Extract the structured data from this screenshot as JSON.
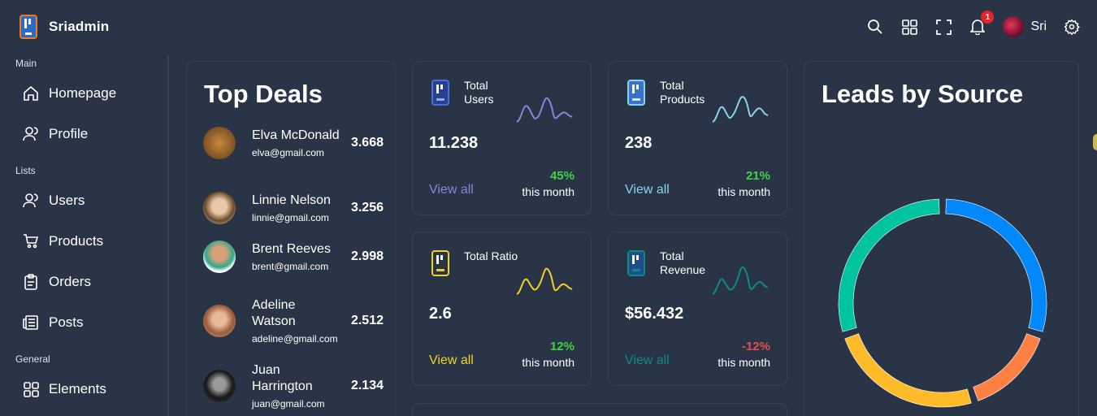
{
  "app": {
    "title": "Sriadmin"
  },
  "header": {
    "notification_count": "1",
    "user_name": "Sri"
  },
  "sidebar": {
    "sections": [
      {
        "title": "Main",
        "items": [
          {
            "label": "Homepage",
            "icon": "home-icon"
          },
          {
            "label": "Profile",
            "icon": "user-icon"
          }
        ]
      },
      {
        "title": "Lists",
        "items": [
          {
            "label": "Users",
            "icon": "users-icon"
          },
          {
            "label": "Products",
            "icon": "cart-icon"
          },
          {
            "label": "Orders",
            "icon": "clipboard-icon"
          },
          {
            "label": "Posts",
            "icon": "newspaper-icon"
          }
        ]
      },
      {
        "title": "General",
        "items": [
          {
            "label": "Elements",
            "icon": "grid-icon"
          }
        ]
      }
    ]
  },
  "top_deals": {
    "title": "Top Deals",
    "deals": [
      {
        "name": "Elva McDonald",
        "email": "elva@gmail.com",
        "amount": "3.668"
      },
      {
        "name": "Linnie Nelson",
        "email": "linnie@gmail.com",
        "amount": "3.256"
      },
      {
        "name": "Brent Reeves",
        "email": "brent@gmail.com",
        "amount": "2.998"
      },
      {
        "name": "Adeline Watson",
        "email": "adeline@gmail.com",
        "amount": "2.512"
      },
      {
        "name": "Juan Harrington",
        "email": "juan@gmail.com",
        "amount": "2.134"
      }
    ]
  },
  "cards": {
    "users": {
      "title": "Total Users",
      "value": "11.238",
      "link": "View all",
      "percent": "45%",
      "period": "this month",
      "color": "#8884d8",
      "percent_color": "#3dd43d"
    },
    "products": {
      "title": "Total Products",
      "value": "238",
      "link": "View all",
      "percent": "21%",
      "period": "this month",
      "color": "#8bd2ec",
      "percent_color": "#3dd43d"
    },
    "ratio": {
      "title": "Total Ratio",
      "value": "2.6",
      "link": "View all",
      "percent": "12%",
      "period": "this month",
      "color": "#f2d024",
      "percent_color": "#3dd43d"
    },
    "revenue": {
      "title": "Total Revenue",
      "value": "$56.432",
      "link": "View all",
      "percent": "-12%",
      "period": "this month",
      "color": "#0f8a80",
      "percent_color": "#e84b4b"
    }
  },
  "leads": {
    "title": "Leads by Source",
    "chart_data": {
      "type": "pie",
      "values": [
        30,
        15,
        25,
        30
      ],
      "colors": [
        "#0088fe",
        "#ff8042",
        "#ffbb28",
        "#00c49f"
      ]
    }
  }
}
